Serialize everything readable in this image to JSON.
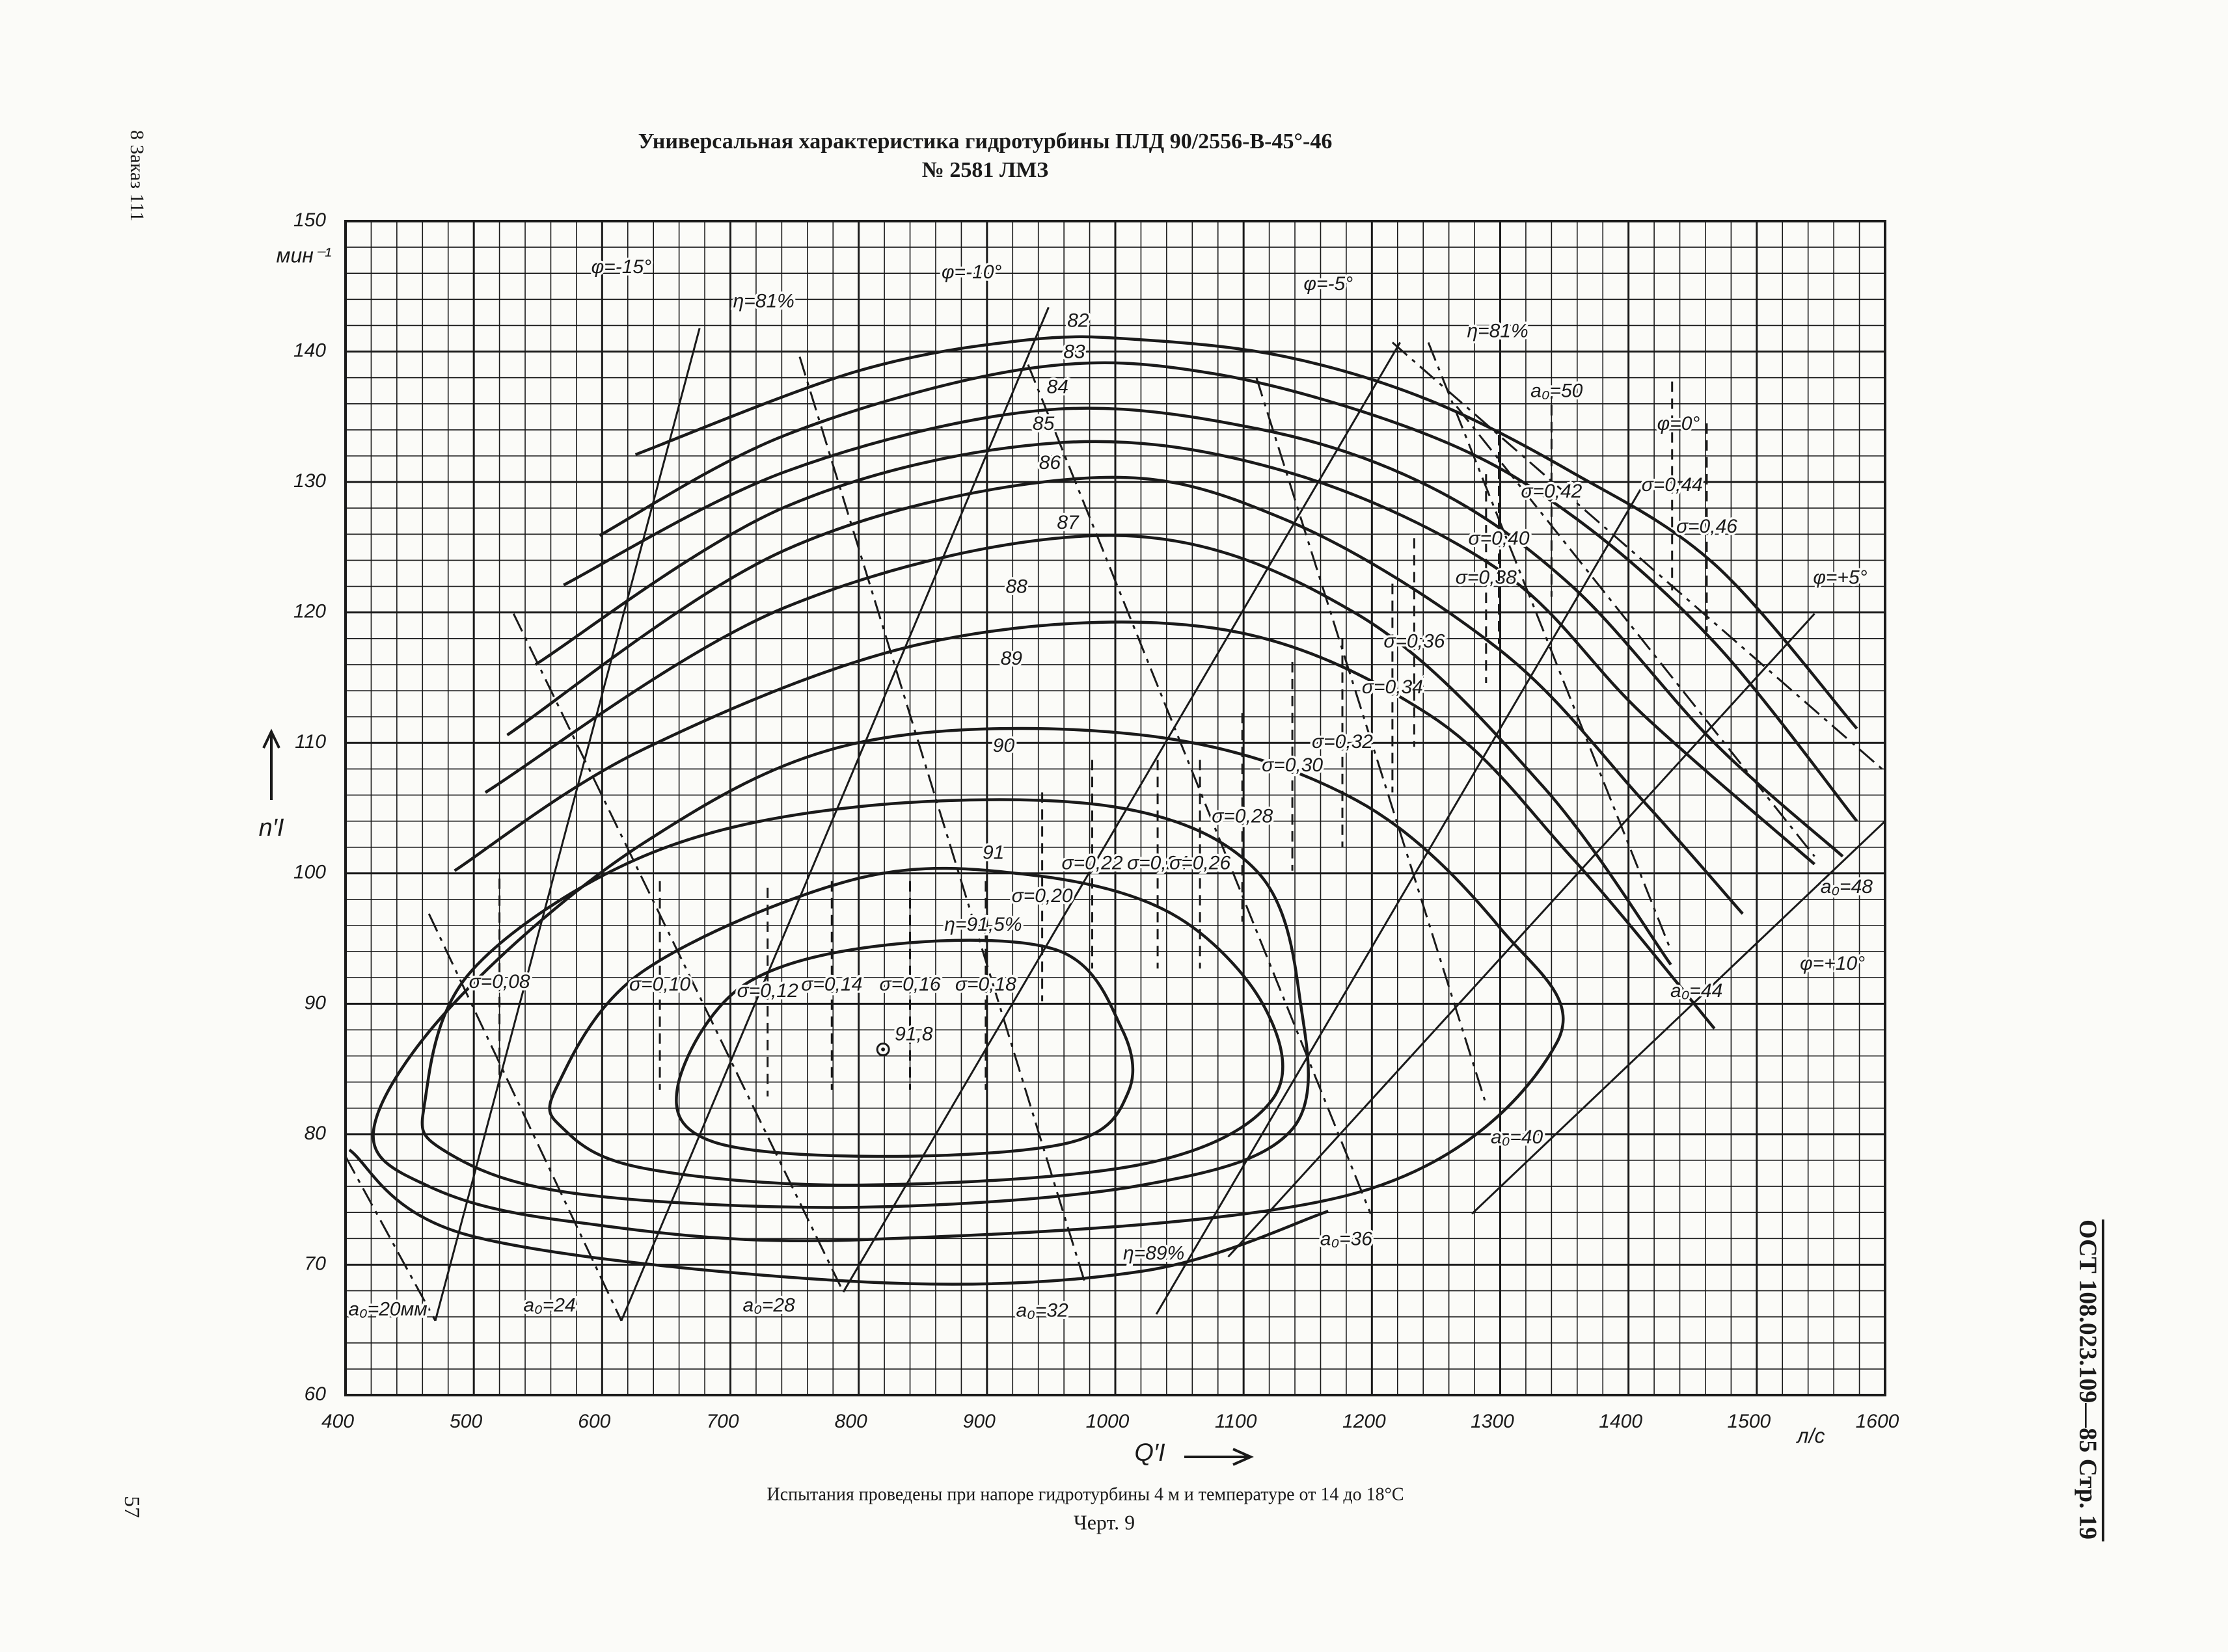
{
  "document": {
    "margin_note": "8 Заказ 111",
    "page_number": "57",
    "stamp": "ОСТ 108.023.109—85 Стр. 19",
    "caption": "Испытания проведены при напоре гидротурбины 4 м и температуре от 14 до 18°C",
    "figure": "Черт. 9"
  },
  "chart_data": {
    "type": "universal_characteristic",
    "title": "Универсальная характеристика гидротурбины ПЛД 90/2556-В-45°-46",
    "subtitle": "№ 2581 ЛМЗ",
    "x_label": "Q′I",
    "x_unit": "л/с",
    "y_label": "n′I",
    "y_unit": "мин⁻¹",
    "xlim": [
      400,
      1600
    ],
    "ylim": [
      60,
      150
    ],
    "xticks": [
      400,
      500,
      600,
      700,
      800,
      900,
      1000,
      1100,
      1200,
      1300,
      1400,
      1500,
      1600
    ],
    "yticks": [
      60,
      70,
      80,
      90,
      100,
      110,
      120,
      130,
      140,
      150
    ],
    "grid": true,
    "efficiency": [
      {
        "closed": false,
        "x": [
          626,
          799,
          932,
          1021,
          1133,
          1244,
          1355,
          1467,
          1578
        ],
        "y": [
          132.1,
          138.5,
          140.9,
          140.9,
          139.6,
          136.3,
          130.8,
          123.7,
          111.1
        ]
      },
      {
        "closed": false,
        "x": [
          598,
          743,
          932,
          1077,
          1244,
          1355,
          1467,
          1578
        ],
        "y": [
          125.9,
          133.6,
          138.7,
          138.3,
          133.6,
          127.5,
          117.7,
          104
        ]
      },
      {
        "closed": false,
        "x": [
          570,
          743,
          943,
          1110,
          1244,
          1355,
          1467,
          1567
        ],
        "y": [
          122.1,
          130.8,
          135.5,
          134.1,
          129.7,
          122.1,
          110,
          101.3
        ]
      },
      {
        "closed": false,
        "x": [
          548,
          743,
          954,
          1133,
          1300,
          1411,
          1545
        ],
        "y": [
          116,
          128.1,
          133,
          130.8,
          123.2,
          112.2,
          100.7
        ]
      },
      {
        "closed": false,
        "x": [
          526,
          743,
          977,
          1133,
          1300,
          1411,
          1489
        ],
        "y": [
          110.6,
          124.8,
          130.3,
          127.1,
          117.1,
          105.6,
          96.9
        ]
      },
      {
        "closed": false,
        "x": [
          509,
          743,
          1000,
          1188,
          1333,
          1433
        ],
        "y": [
          106.2,
          120.4,
          125.9,
          119.9,
          106.7,
          93
        ]
      },
      {
        "closed": false,
        "x": [
          485,
          632,
          854,
          1077,
          1244,
          1355,
          1467
        ],
        "y": [
          100.2,
          109.5,
          117.7,
          118.8,
          112.2,
          101.3,
          88.1
        ]
      },
      {
        "closed": true,
        "x": [
          487,
          632,
          799,
          1021,
          1188,
          1300,
          1344,
          1188,
          799,
          576,
          465,
          422
        ],
        "y": [
          90.3,
          102.3,
          110,
          110.6,
          105.6,
          95.8,
          87,
          75.5,
          71.9,
          73.3,
          76,
          80.4
        ]
      },
      {
        "closed": true,
        "x": [
          462,
          498,
          632,
          799,
          999,
          1110,
          1144,
          1138,
          1021,
          799,
          576,
          476
        ],
        "y": [
          82.6,
          92.5,
          101.3,
          105.1,
          105.1,
          100.2,
          90.3,
          80.4,
          76.1,
          74.4,
          75.5,
          78.8
        ]
      },
      {
        "closed": true,
        "x": [
          565,
          632,
          799,
          932,
          1044,
          1116,
          1122,
          1021,
          799,
          632,
          570
        ],
        "y": [
          83.7,
          92.5,
          99.6,
          99.9,
          96.9,
          89.8,
          82.6,
          77.7,
          76.1,
          77.4,
          80.4
        ]
      },
      {
        "closed": true,
        "x": [
          659,
          710,
          821,
          955,
          1005,
          1010,
          966,
          821,
          687
        ],
        "y": [
          83.7,
          91.4,
          94.5,
          94.1,
          88.1,
          83.2,
          79.4,
          78.3,
          79.4
        ]
      },
      {
        "closed": false,
        "x": [
          403,
          498,
          799,
          1021,
          1166
        ],
        "y": [
          78.8,
          72.2,
          68.7,
          69.5,
          74.1
        ]
      }
    ],
    "openings": [
      {
        "x": [
          400,
          470
        ],
        "y": [
          78.3,
          65.7
        ]
      },
      {
        "x": [
          465,
          615
        ],
        "y": [
          96.9,
          65.7
        ]
      },
      {
        "x": [
          531,
          788
        ],
        "y": [
          119.9,
          67.9
        ]
      },
      {
        "x": [
          754,
          977
        ],
        "y": [
          139.6,
          68.4
        ]
      },
      {
        "x": [
          932,
          1199
        ],
        "y": [
          139,
          73.9
        ]
      },
      {
        "x": [
          1110,
          1288
        ],
        "y": [
          138,
          82.6
        ]
      },
      {
        "x": [
          1244,
          1433
        ],
        "y": [
          140.7,
          94.1
        ]
      },
      {
        "x": [
          1266,
          1545
        ],
        "y": [
          135.8,
          101.3
        ]
      },
      {
        "x": [
          1216,
          1600
        ],
        "y": [
          140.7,
          107.8
        ]
      }
    ],
    "blade_angles": [
      {
        "x": [
          470,
          676
        ],
        "y": [
          65.7,
          141.8
        ]
      },
      {
        "x": [
          615,
          948
        ],
        "y": [
          65.7,
          143.4
        ]
      },
      {
        "x": [
          788,
          1222
        ],
        "y": [
          67.9,
          140.7
        ]
      },
      {
        "x": [
          1032,
          1411
        ],
        "y": [
          66.2,
          129.7
        ]
      },
      {
        "x": [
          1088,
          1545
        ],
        "y": [
          70.6,
          119.9
        ]
      },
      {
        "x": [
          1278,
          1600
        ],
        "y": [
          73.9,
          104
        ]
      }
    ],
    "cavitation": [
      {
        "label": "σ=0,08",
        "x": [
          520,
          520
        ],
        "y": [
          99.6,
          83.6
        ]
      },
      {
        "label": "σ=0,10",
        "x": [
          645,
          645
        ],
        "y": [
          99.4,
          83.4
        ]
      },
      {
        "label": "σ=0,12",
        "x": [
          729,
          729
        ],
        "y": [
          98.9,
          82.9
        ]
      },
      {
        "label": "σ=0,14",
        "x": [
          779,
          779
        ],
        "y": [
          99.4,
          83.4
        ]
      },
      {
        "label": "σ=0,16",
        "x": [
          840,
          840
        ],
        "y": [
          99.4,
          83.4
        ]
      },
      {
        "label": "σ=0,18",
        "x": [
          899,
          899
        ],
        "y": [
          99.4,
          83.4
        ]
      },
      {
        "label": "σ=0,20",
        "x": [
          943,
          943
        ],
        "y": [
          106.2,
          90.2
        ]
      },
      {
        "label": "σ=0,22",
        "x": [
          982,
          982
        ],
        "y": [
          108.7,
          92.7
        ]
      },
      {
        "label": "σ=0,24",
        "x": [
          1033,
          1033
        ],
        "y": [
          108.7,
          92.7
        ]
      },
      {
        "label": "σ=0,26",
        "x": [
          1066,
          1066
        ],
        "y": [
          108.7,
          92.7
        ]
      },
      {
        "label": "σ=0,28",
        "x": [
          1099,
          1099
        ],
        "y": [
          112.3,
          96.3
        ]
      },
      {
        "label": "σ=0,30",
        "x": [
          1138,
          1138
        ],
        "y": [
          116.2,
          100.2
        ]
      },
      {
        "label": "σ=0,32",
        "x": [
          1177,
          1177
        ],
        "y": [
          118,
          102
        ]
      },
      {
        "label": "σ=0,34",
        "x": [
          1216,
          1216
        ],
        "y": [
          122.2,
          106.2
        ]
      },
      {
        "label": "σ=0,36",
        "x": [
          1233,
          1233
        ],
        "y": [
          125.7,
          109.7
        ]
      },
      {
        "label": "σ=0,38",
        "x": [
          1289,
          1289
        ],
        "y": [
          130.6,
          114.6
        ]
      },
      {
        "label": "σ=0,40",
        "x": [
          1299,
          1299
        ],
        "y": [
          133.6,
          117.6
        ]
      },
      {
        "label": "σ=0,42",
        "x": [
          1340,
          1340
        ],
        "y": [
          137.2,
          121.2
        ]
      },
      {
        "label": "σ=0,44",
        "x": [
          1434,
          1434
        ],
        "y": [
          137.7,
          121.7
        ]
      },
      {
        "label": "σ=0,46",
        "x": [
          1461,
          1461
        ],
        "y": [
          134.5,
          118.5
        ]
      }
    ],
    "optimum": {
      "label": "91,8",
      "x": 819,
      "y": 86.5
    },
    "annotations": [
      {
        "text": "φ=-15°",
        "x": 615,
        "y": 146.4
      },
      {
        "text": "η=81%",
        "x": 726,
        "y": 143.8
      },
      {
        "text": "φ=-10°",
        "x": 888,
        "y": 146
      },
      {
        "text": "82",
        "x": 971,
        "y": 142.3
      },
      {
        "text": "83",
        "x": 968,
        "y": 139.9
      },
      {
        "text": "84",
        "x": 955,
        "y": 137.2
      },
      {
        "text": "85",
        "x": 944,
        "y": 134.4
      },
      {
        "text": "86",
        "x": 949,
        "y": 131.4
      },
      {
        "text": "87",
        "x": 963,
        "y": 126.8
      },
      {
        "text": "88",
        "x": 923,
        "y": 121.9
      },
      {
        "text": "89",
        "x": 919,
        "y": 116.4
      },
      {
        "text": "90",
        "x": 913,
        "y": 109.7
      },
      {
        "text": "91",
        "x": 905,
        "y": 101.5
      },
      {
        "text": "η=91,5%",
        "x": 897,
        "y": 96
      },
      {
        "text": "φ=-5°",
        "x": 1166,
        "y": 145.1
      },
      {
        "text": "η=81%",
        "x": 1298,
        "y": 141.5
      },
      {
        "text": "a₀=50",
        "x": 1344,
        "y": 136.9
      },
      {
        "text": "φ=0°",
        "x": 1439,
        "y": 134.4
      },
      {
        "text": "φ=+5°",
        "x": 1565,
        "y": 122.6
      },
      {
        "text": "a₀=48",
        "x": 1570,
        "y": 98.9
      },
      {
        "text": "φ=+10°",
        "x": 1559,
        "y": 93
      },
      {
        "text": "a₀=44",
        "x": 1453,
        "y": 90.9
      },
      {
        "text": "a₀=40",
        "x": 1313,
        "y": 79.7
      },
      {
        "text": "a₀=36",
        "x": 1180,
        "y": 71.9
      },
      {
        "text": "η=89%",
        "x": 1030,
        "y": 70.8
      },
      {
        "text": "a₀=32",
        "x": 943,
        "y": 66.4
      },
      {
        "text": "a₀=28",
        "x": 730,
        "y": 66.8
      },
      {
        "text": "a₀=24",
        "x": 559,
        "y": 66.8
      },
      {
        "text": "a₀=20мм",
        "x": 433,
        "y": 66.5
      }
    ]
  }
}
